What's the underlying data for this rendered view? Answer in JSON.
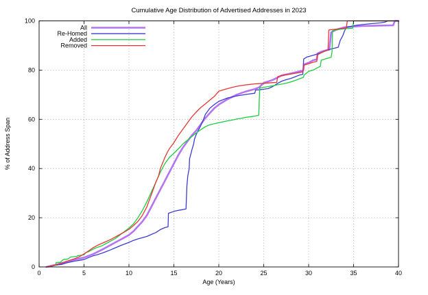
{
  "background": "#ffffff",
  "chart_data": {
    "type": "line",
    "title": "Cumulative Age Distribution of Advertised Addresses in 2023",
    "xlabel": "Age (Years)",
    "ylabel": "% of Address Span",
    "xlim": [
      0,
      40
    ],
    "ylim": [
      0,
      100
    ],
    "xticks": [
      0,
      5,
      10,
      15,
      20,
      25,
      30,
      35,
      40
    ],
    "yticks": [
      0,
      20,
      40,
      60,
      80,
      100
    ],
    "grid": true,
    "legend_position": "top-left",
    "series": [
      {
        "name": "All",
        "color": "#b473f2",
        "width": 2.6,
        "points": [
          [
            0.8,
            0
          ],
          [
            2,
            1
          ],
          [
            3,
            2
          ],
          [
            4,
            3
          ],
          [
            5,
            3.8
          ],
          [
            6,
            5.2
          ],
          [
            7,
            7
          ],
          [
            8,
            9
          ],
          [
            9,
            11
          ],
          [
            10,
            13
          ],
          [
            10.5,
            14.5
          ],
          [
            11,
            16.5
          ],
          [
            11.5,
            18.5
          ],
          [
            12,
            21
          ],
          [
            12.5,
            24.5
          ],
          [
            13,
            28
          ],
          [
            13.5,
            31.5
          ],
          [
            14,
            35
          ],
          [
            14.5,
            38.5
          ],
          [
            15,
            42
          ],
          [
            15.5,
            45.5
          ],
          [
            16,
            48.5
          ],
          [
            16.5,
            51
          ],
          [
            17,
            53.5
          ],
          [
            17.5,
            55.5
          ],
          [
            18,
            58
          ],
          [
            18.5,
            60.5
          ],
          [
            19,
            62.5
          ],
          [
            19.5,
            64.5
          ],
          [
            20,
            66
          ],
          [
            21,
            68.2
          ],
          [
            22,
            70
          ],
          [
            23,
            71.3
          ],
          [
            24,
            72.3
          ],
          [
            24.5,
            73
          ],
          [
            25,
            74.8
          ],
          [
            26,
            76
          ],
          [
            27,
            77.8
          ],
          [
            28,
            78.6
          ],
          [
            29,
            79.5
          ],
          [
            29.4,
            79.8
          ],
          [
            29.5,
            82.3
          ],
          [
            30,
            83
          ],
          [
            30.5,
            84
          ],
          [
            30.9,
            84.3
          ],
          [
            31,
            86.8
          ],
          [
            31.5,
            87.6
          ],
          [
            32,
            88.1
          ],
          [
            32.3,
            88.3
          ],
          [
            32.5,
            95.3
          ],
          [
            33,
            96.3
          ],
          [
            33.5,
            96.9
          ],
          [
            34,
            97.4
          ],
          [
            35,
            97.7
          ],
          [
            36,
            97.9
          ],
          [
            37,
            98
          ],
          [
            38,
            98.1
          ],
          [
            39.4,
            98.2
          ],
          [
            39.6,
            100
          ],
          [
            40,
            100
          ]
        ]
      },
      {
        "name": "Re-Homed",
        "color": "#3b3bd0",
        "width": 1.3,
        "points": [
          [
            1,
            0
          ],
          [
            2,
            0.8
          ],
          [
            2.5,
            1
          ],
          [
            3,
            1.6
          ],
          [
            3.5,
            2
          ],
          [
            4,
            2.4
          ],
          [
            4.5,
            2.7
          ],
          [
            5,
            3
          ],
          [
            5.5,
            3.8
          ],
          [
            6,
            4.5
          ],
          [
            6.5,
            5
          ],
          [
            7,
            5.6
          ],
          [
            7.5,
            6.3
          ],
          [
            8,
            7
          ],
          [
            8.5,
            7.8
          ],
          [
            9,
            8.6
          ],
          [
            9.5,
            9.3
          ],
          [
            10,
            10
          ],
          [
            10.5,
            10.8
          ],
          [
            11,
            11.4
          ],
          [
            11.5,
            11.9
          ],
          [
            12,
            12.4
          ],
          [
            12.5,
            13.2
          ],
          [
            13,
            14
          ],
          [
            13.5,
            15.2
          ],
          [
            14,
            16
          ],
          [
            14.35,
            16.3
          ],
          [
            14.4,
            21.8
          ],
          [
            14.8,
            22.3
          ],
          [
            15,
            22.6
          ],
          [
            15.5,
            23
          ],
          [
            16,
            23.3
          ],
          [
            16.35,
            23.6
          ],
          [
            16.45,
            33
          ],
          [
            16.55,
            37
          ],
          [
            16.7,
            40
          ],
          [
            16.75,
            44
          ],
          [
            16.9,
            46
          ],
          [
            17,
            47.5
          ],
          [
            17.2,
            50
          ],
          [
            17.3,
            52
          ],
          [
            17.5,
            54
          ],
          [
            18,
            57.5
          ],
          [
            18.3,
            60
          ],
          [
            18.5,
            62
          ],
          [
            19,
            64.5
          ],
          [
            19.5,
            66
          ],
          [
            20,
            67.3
          ],
          [
            20.5,
            68
          ],
          [
            21,
            68.7
          ],
          [
            21.5,
            69.1
          ],
          [
            22,
            69.5
          ],
          [
            23,
            70.1
          ],
          [
            24,
            70.6
          ],
          [
            24.1,
            71.9
          ],
          [
            24.5,
            72
          ],
          [
            25,
            72.2
          ],
          [
            25.5,
            72.5
          ],
          [
            26,
            73.3
          ],
          [
            26.5,
            74.5
          ],
          [
            27,
            75.5
          ],
          [
            27.5,
            76.1
          ],
          [
            28,
            76.6
          ],
          [
            28.5,
            77.3
          ],
          [
            29,
            78
          ],
          [
            29.35,
            78.3
          ],
          [
            29.45,
            84.5
          ],
          [
            29.8,
            85.3
          ],
          [
            30,
            85.5
          ],
          [
            30.5,
            86
          ],
          [
            31,
            86.6
          ],
          [
            31.5,
            87.2
          ],
          [
            32,
            88
          ],
          [
            32.5,
            88.6
          ],
          [
            33,
            89
          ],
          [
            33.3,
            89.3
          ],
          [
            33.5,
            92
          ],
          [
            33.8,
            94
          ],
          [
            34,
            96
          ],
          [
            34.2,
            97.3
          ],
          [
            34.5,
            97.6
          ],
          [
            35,
            98
          ],
          [
            35.5,
            98.3
          ],
          [
            36,
            98.5
          ],
          [
            37,
            98.9
          ],
          [
            38,
            99.2
          ],
          [
            38.5,
            99.5
          ],
          [
            38.8,
            100
          ],
          [
            40,
            100
          ]
        ]
      },
      {
        "name": "Added",
        "color": "#18ce3c",
        "width": 1.3,
        "points": [
          [
            1,
            0
          ],
          [
            1.5,
            0.5
          ],
          [
            1.85,
            0.7
          ],
          [
            1.9,
            1.8
          ],
          [
            2.4,
            1.9
          ],
          [
            2.5,
            2.4
          ],
          [
            2.7,
            3
          ],
          [
            3.2,
            3.2
          ],
          [
            3.5,
            4
          ],
          [
            4.2,
            4.3
          ],
          [
            4.3,
            4.6
          ],
          [
            5,
            4.9
          ],
          [
            5.2,
            5.8
          ],
          [
            5.5,
            6.2
          ],
          [
            6,
            7.2
          ],
          [
            6.5,
            8
          ],
          [
            7,
            8.6
          ],
          [
            7.5,
            9.6
          ],
          [
            8,
            10.6
          ],
          [
            8.5,
            11.6
          ],
          [
            9,
            13
          ],
          [
            9.5,
            14.4
          ],
          [
            10,
            15.8
          ],
          [
            10.5,
            17.5
          ],
          [
            11,
            20
          ],
          [
            11.5,
            23
          ],
          [
            12,
            26.5
          ],
          [
            12.5,
            30.5
          ],
          [
            13,
            34.5
          ],
          [
            13.5,
            38.5
          ],
          [
            14,
            42
          ],
          [
            14.5,
            44.5
          ],
          [
            15,
            46.2
          ],
          [
            15.5,
            48
          ],
          [
            16,
            50
          ],
          [
            16.5,
            51.5
          ],
          [
            17,
            53
          ],
          [
            17.5,
            54.5
          ],
          [
            18,
            55.8
          ],
          [
            18.5,
            57
          ],
          [
            19,
            57.8
          ],
          [
            19.5,
            58.2
          ],
          [
            20,
            58.6
          ],
          [
            20.5,
            59
          ],
          [
            21,
            59.4
          ],
          [
            21.5,
            59.7
          ],
          [
            22,
            60.1
          ],
          [
            22.5,
            60.4
          ],
          [
            23,
            60.8
          ],
          [
            23.5,
            61
          ],
          [
            24,
            61.3
          ],
          [
            24.45,
            61.7
          ],
          [
            24.55,
            72.7
          ],
          [
            25,
            73
          ],
          [
            25.5,
            73.3
          ],
          [
            26,
            73.6
          ],
          [
            26.5,
            74
          ],
          [
            27,
            74.3
          ],
          [
            27.5,
            74.7
          ],
          [
            28,
            75.2
          ],
          [
            28.5,
            75.8
          ],
          [
            29,
            76.5
          ],
          [
            29.4,
            77
          ],
          [
            29.5,
            78
          ],
          [
            30,
            79.5
          ],
          [
            30.5,
            80
          ],
          [
            31,
            81
          ],
          [
            31.3,
            81.5
          ],
          [
            31.4,
            84
          ],
          [
            32,
            84.7
          ],
          [
            32.5,
            85.2
          ],
          [
            32.6,
            87.5
          ],
          [
            32.65,
            96
          ],
          [
            33,
            96.3
          ],
          [
            33.5,
            96.6
          ],
          [
            34,
            96.8
          ],
          [
            34.9,
            97
          ],
          [
            35,
            100
          ],
          [
            40,
            100
          ]
        ]
      },
      {
        "name": "Removed",
        "color": "#e43535",
        "width": 1.3,
        "points": [
          [
            0.9,
            0
          ],
          [
            1.5,
            0.5
          ],
          [
            2,
            1
          ],
          [
            2.5,
            1.5
          ],
          [
            3,
            2.2
          ],
          [
            3.5,
            2.8
          ],
          [
            4,
            3.4
          ],
          [
            4.5,
            4.2
          ],
          [
            5,
            5.3
          ],
          [
            5.5,
            6.5
          ],
          [
            6,
            7.8
          ],
          [
            6.5,
            8.8
          ],
          [
            7,
            9.6
          ],
          [
            7.5,
            10.4
          ],
          [
            8,
            11.2
          ],
          [
            8.5,
            12.2
          ],
          [
            9,
            13.2
          ],
          [
            9.5,
            14.2
          ],
          [
            10,
            15.3
          ],
          [
            10.5,
            16.8
          ],
          [
            11,
            18.5
          ],
          [
            11.5,
            21
          ],
          [
            12,
            24.5
          ],
          [
            12.5,
            29.5
          ],
          [
            13,
            34.5
          ],
          [
            13.3,
            37
          ],
          [
            13.5,
            40
          ],
          [
            14,
            44.5
          ],
          [
            14.3,
            46.8
          ],
          [
            14.5,
            48
          ],
          [
            15,
            50.5
          ],
          [
            15.5,
            53.5
          ],
          [
            16,
            56
          ],
          [
            16.5,
            58.5
          ],
          [
            17,
            61
          ],
          [
            17.5,
            63
          ],
          [
            18,
            64.8
          ],
          [
            18.5,
            66.3
          ],
          [
            19,
            67.8
          ],
          [
            19.5,
            69.3
          ],
          [
            20,
            71.4
          ],
          [
            20.5,
            72
          ],
          [
            21,
            72.5
          ],
          [
            21.5,
            73
          ],
          [
            22,
            73.4
          ],
          [
            22.5,
            73.7
          ],
          [
            23,
            74
          ],
          [
            23.5,
            74.2
          ],
          [
            24,
            74.4
          ],
          [
            25,
            74.6
          ],
          [
            26,
            74.9
          ],
          [
            26.45,
            75
          ],
          [
            26.55,
            77.3
          ],
          [
            27,
            77.8
          ],
          [
            27.5,
            78.1
          ],
          [
            28,
            78.4
          ],
          [
            28.5,
            78.7
          ],
          [
            29,
            79
          ],
          [
            29.35,
            79.3
          ],
          [
            29.45,
            82
          ],
          [
            30,
            82.6
          ],
          [
            30.5,
            83.2
          ],
          [
            30.9,
            83.5
          ],
          [
            31,
            86.3
          ],
          [
            31.5,
            87.2
          ],
          [
            32,
            88
          ],
          [
            32.15,
            88.2
          ],
          [
            32.25,
            96.3
          ],
          [
            32.5,
            96.4
          ],
          [
            33,
            96.6
          ],
          [
            33.5,
            96.8
          ],
          [
            34,
            97
          ],
          [
            34.2,
            97.2
          ],
          [
            34.3,
            100
          ],
          [
            40,
            100
          ]
        ]
      }
    ]
  }
}
